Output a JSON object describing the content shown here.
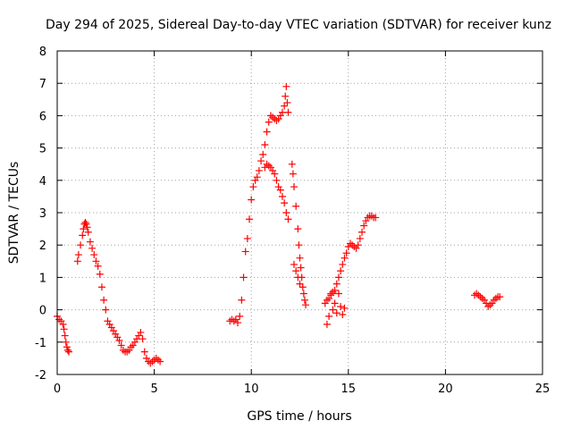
{
  "chart_data": {
    "type": "scatter",
    "title": "Day 294 of 2025, Sidereal Day-to-day VTEC variation (SDTVAR) for receiver kunz",
    "xlabel": "GPS time / hours",
    "ylabel": "SDTVAR / TECUs",
    "xlim": [
      0,
      25
    ],
    "ylim": [
      -2,
      8
    ],
    "xticks": [
      0,
      5,
      10,
      15,
      20,
      25
    ],
    "yticks": [
      -2,
      -1,
      0,
      1,
      2,
      3,
      4,
      5,
      6,
      7,
      8
    ],
    "grid": true,
    "marker": "plus",
    "color": "#ff0000",
    "series": [
      {
        "x": [
          0.0,
          0.1,
          0.2,
          0.3,
          0.35,
          0.4,
          0.45,
          0.5,
          0.55,
          0.6
        ],
        "y": [
          -0.2,
          -0.3,
          -0.35,
          -0.45,
          -0.6,
          -0.8,
          -1.0,
          -1.15,
          -1.25,
          -1.3
        ]
      },
      {
        "x": [
          1.05,
          1.1,
          1.2,
          1.3,
          1.35,
          1.4,
          1.45,
          1.5,
          1.55,
          1.6,
          1.7,
          1.8,
          1.9,
          2.0,
          2.1,
          2.2,
          2.3,
          2.4,
          2.5,
          2.6,
          2.7,
          2.8,
          2.9,
          3.0,
          3.1,
          3.2,
          3.3,
          3.4,
          3.5,
          3.6,
          3.7,
          3.8,
          3.9,
          4.0,
          4.1,
          4.2,
          4.3,
          4.4,
          4.5,
          4.6,
          4.7,
          4.8,
          4.9,
          5.0,
          5.1,
          5.2,
          5.3
        ],
        "y": [
          1.5,
          1.7,
          2.0,
          2.3,
          2.5,
          2.65,
          2.7,
          2.65,
          2.55,
          2.4,
          2.1,
          1.9,
          1.7,
          1.5,
          1.35,
          1.1,
          0.7,
          0.3,
          0.0,
          -0.35,
          -0.45,
          -0.55,
          -0.65,
          -0.75,
          -0.85,
          -0.95,
          -1.1,
          -1.25,
          -1.3,
          -1.3,
          -1.25,
          -1.15,
          -1.1,
          -1.0,
          -0.9,
          -0.8,
          -0.7,
          -0.9,
          -1.3,
          -1.5,
          -1.6,
          -1.65,
          -1.6,
          -1.55,
          -1.5,
          -1.55,
          -1.6
        ]
      },
      {
        "x": [
          8.9,
          9.0,
          9.1,
          9.2,
          9.3,
          9.4,
          9.5,
          9.6,
          9.7,
          9.8,
          9.9,
          10.0,
          10.1,
          10.2,
          10.3,
          10.4,
          10.5,
          10.6,
          10.7,
          10.8,
          10.9,
          11.0,
          11.1,
          11.2,
          11.3,
          11.4,
          11.5,
          11.6,
          11.7,
          11.75,
          11.8,
          11.85,
          11.9
        ],
        "y": [
          -0.35,
          -0.3,
          -0.35,
          -0.3,
          -0.4,
          -0.2,
          0.3,
          1.0,
          1.8,
          2.2,
          2.8,
          3.4,
          3.8,
          4.0,
          4.1,
          4.3,
          4.6,
          4.8,
          5.1,
          5.5,
          5.8,
          6.0,
          5.95,
          5.9,
          5.85,
          5.9,
          6.0,
          6.1,
          6.3,
          6.6,
          6.9,
          6.4,
          6.1
        ]
      },
      {
        "x": [
          10.7,
          10.8,
          10.9,
          11.0,
          11.1,
          11.2,
          11.3,
          11.4,
          11.5,
          11.6,
          11.7,
          11.8,
          11.9
        ],
        "y": [
          4.4,
          4.5,
          4.45,
          4.4,
          4.3,
          4.2,
          4.0,
          3.8,
          3.7,
          3.5,
          3.3,
          3.0,
          2.8
        ]
      },
      {
        "x": [
          12.1,
          12.15,
          12.2,
          12.3,
          12.4,
          12.45,
          12.5,
          12.55,
          12.6,
          12.65,
          12.7,
          12.75,
          12.8,
          12.2,
          12.3,
          12.4,
          12.5
        ],
        "y": [
          4.5,
          4.2,
          3.8,
          3.2,
          2.5,
          2.0,
          1.6,
          1.3,
          1.0,
          0.7,
          0.5,
          0.3,
          0.15,
          1.4,
          1.2,
          1.0,
          0.8
        ]
      },
      {
        "x": [
          13.8,
          13.9,
          14.0,
          14.1,
          14.2,
          14.3,
          14.4,
          14.5,
          14.6,
          14.7,
          14.8,
          14.9,
          15.0,
          15.1,
          15.2,
          15.3,
          15.4,
          15.5,
          15.6,
          15.7,
          15.8,
          15.9,
          16.0,
          16.1,
          16.2,
          16.3,
          16.4,
          14.0,
          14.2,
          14.4,
          14.5,
          14.6,
          14.7,
          14.8,
          13.9,
          14.1,
          14.3
        ],
        "y": [
          0.2,
          0.3,
          0.35,
          0.45,
          0.55,
          0.6,
          0.8,
          1.0,
          1.2,
          1.4,
          1.6,
          1.75,
          1.95,
          2.05,
          2.0,
          1.95,
          1.9,
          2.0,
          2.2,
          2.4,
          2.6,
          2.75,
          2.85,
          2.9,
          2.9,
          2.85,
          2.85,
          -0.2,
          0.0,
          -0.1,
          0.5,
          0.1,
          -0.15,
          0.05,
          -0.45,
          0.5,
          0.2
        ]
      },
      {
        "x": [
          21.5,
          21.6,
          21.7,
          21.8,
          21.9,
          22.0,
          22.1,
          22.2,
          22.3,
          22.4,
          22.5,
          22.6,
          22.7,
          22.8
        ],
        "y": [
          0.45,
          0.5,
          0.45,
          0.4,
          0.35,
          0.3,
          0.2,
          0.1,
          0.15,
          0.2,
          0.3,
          0.35,
          0.4,
          0.4
        ]
      }
    ]
  }
}
